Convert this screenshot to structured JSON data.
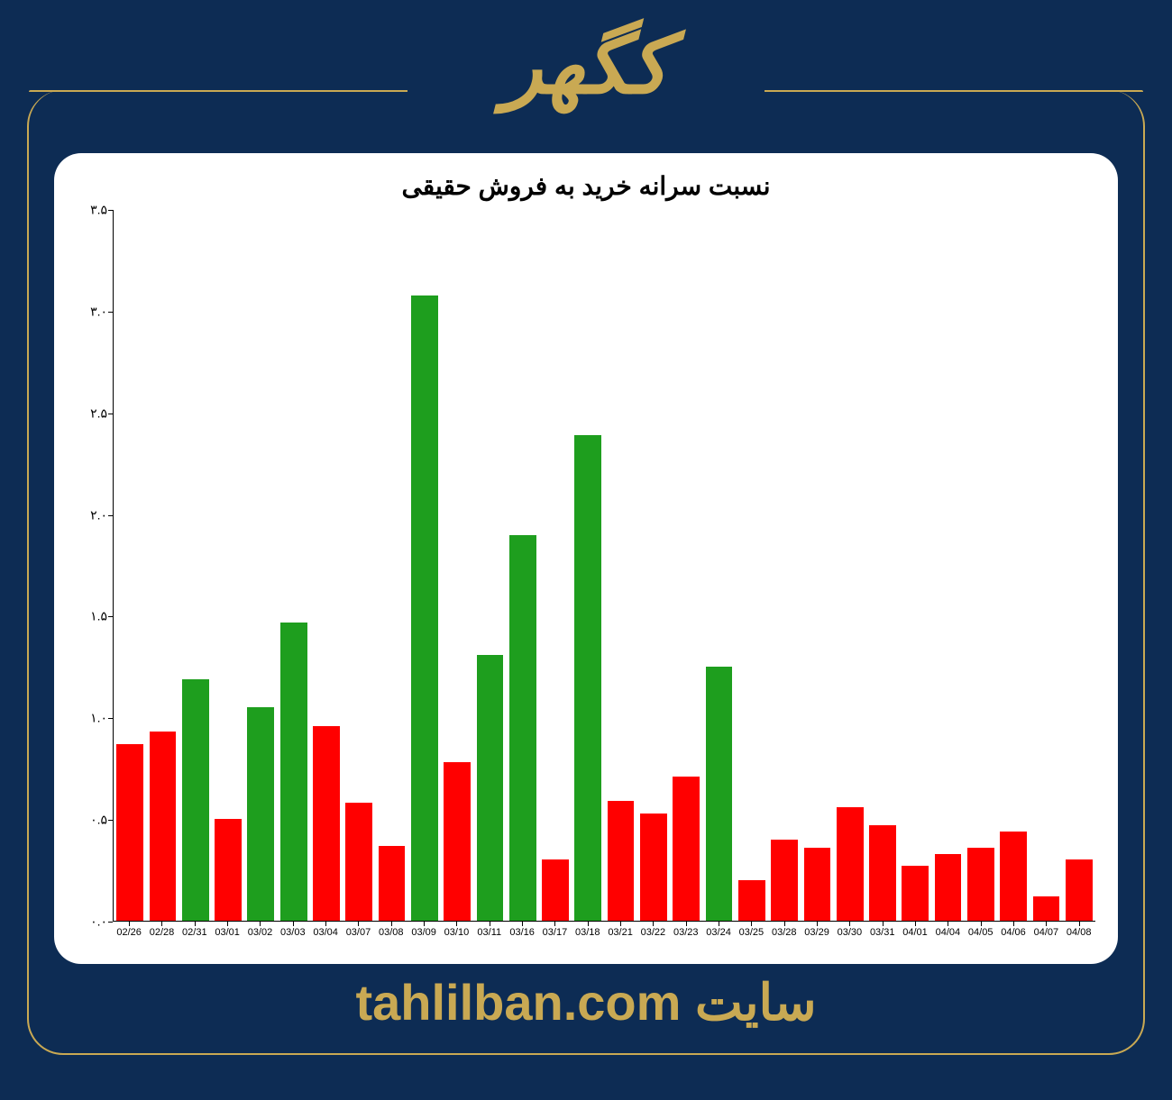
{
  "header": {
    "title": "کگهر",
    "title_color": "#c9a953",
    "title_fontsize": 90
  },
  "footer": {
    "prefix": "سایت",
    "url": "tahlilban.com",
    "color": "#c9a953",
    "fontsize": 56
  },
  "background_color": "#0d2c54",
  "border_color": "#c9a953",
  "chart": {
    "type": "bar",
    "title": "نسبت سرانه خرید به فروش حقیقی",
    "title_fontsize": 28,
    "title_color": "#000000",
    "panel_bg": "#ffffff",
    "ylim": [
      0.0,
      3.5
    ],
    "ytick_step": 0.5,
    "ytick_labels_persian": [
      "۰.۰",
      "۰.۵",
      "۱.۰",
      "۱.۵",
      "۲.۰",
      "۲.۵",
      "۳.۰",
      "۳.۵"
    ],
    "tick_fontsize": 14,
    "xtick_fontsize": 11,
    "bar_width_ratio": 0.82,
    "color_up": "#1e9e1e",
    "color_down": "#ff0000",
    "categories": [
      "02/26",
      "02/28",
      "02/31",
      "03/01",
      "03/02",
      "03/03",
      "03/04",
      "03/07",
      "03/08",
      "03/09",
      "03/10",
      "03/11",
      "03/16",
      "03/17",
      "03/18",
      "03/21",
      "03/22",
      "03/23",
      "03/24",
      "03/25",
      "03/28",
      "03/29",
      "03/30",
      "03/31",
      "04/01",
      "04/04",
      "04/05",
      "04/06",
      "04/07",
      "04/08"
    ],
    "values": [
      0.87,
      0.93,
      1.19,
      0.5,
      1.05,
      1.47,
      0.96,
      0.58,
      0.37,
      3.08,
      0.78,
      1.31,
      1.9,
      0.3,
      2.39,
      0.59,
      0.53,
      0.71,
      1.25,
      0.2,
      0.4,
      0.36,
      0.56,
      0.47,
      0.27,
      0.33,
      0.36,
      0.44,
      0.12,
      0.3
    ],
    "colors_by_index": [
      "down",
      "down",
      "up",
      "down",
      "up",
      "up",
      "down",
      "down",
      "down",
      "up",
      "down",
      "up",
      "up",
      "down",
      "up",
      "down",
      "down",
      "down",
      "up",
      "down",
      "down",
      "down",
      "down",
      "down",
      "down",
      "down",
      "down",
      "down",
      "down",
      "down"
    ]
  }
}
